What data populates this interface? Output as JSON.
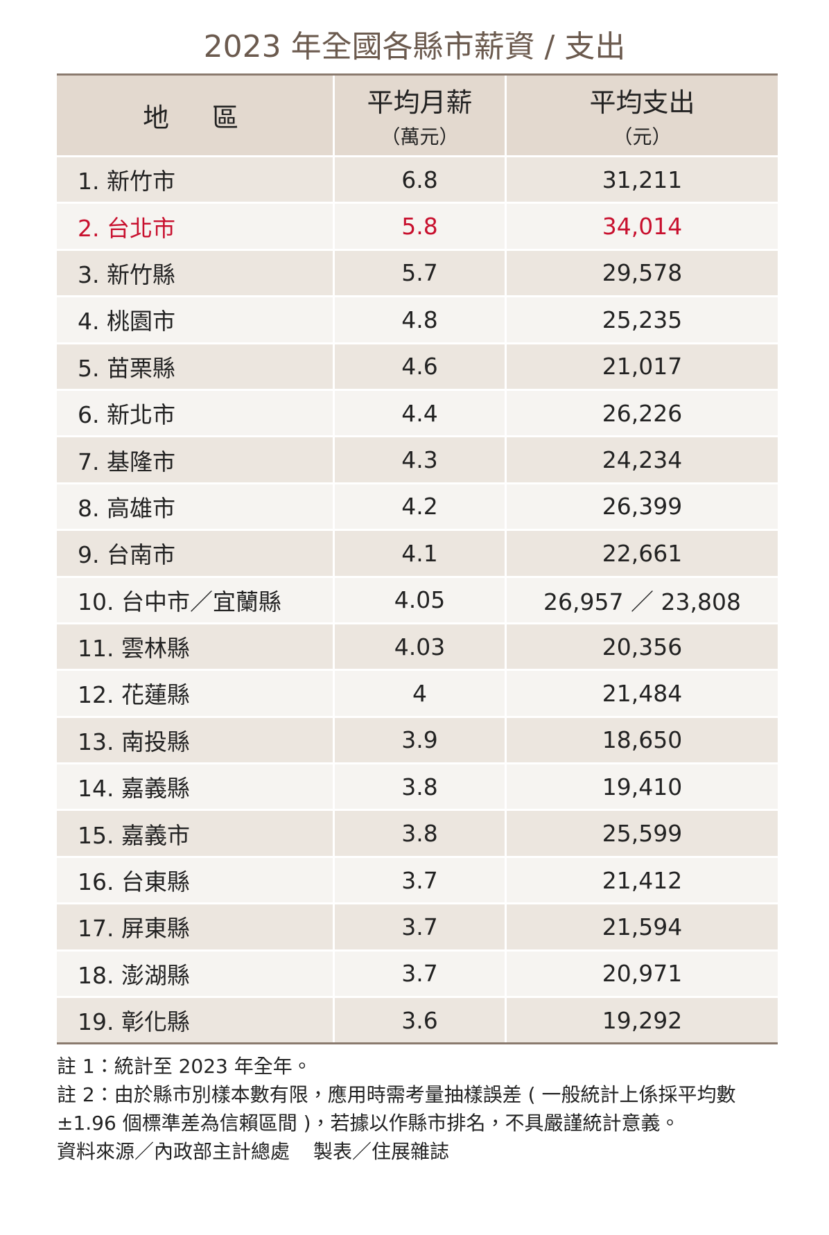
{
  "title": "2023 年全國各縣市薪資 / 支出",
  "table": {
    "header": [
      {
        "label": "地　區"
      },
      {
        "label": "平均月薪",
        "unit": "（萬元）"
      },
      {
        "label": "平均支出",
        "unit": "（元）"
      }
    ],
    "highlight_row": 1,
    "highlight_color": "#c8102e",
    "rows": [
      [
        "1. 新竹市",
        "6.8",
        "31,211"
      ],
      [
        "2. 台北市",
        "5.8",
        "34,014"
      ],
      [
        "3. 新竹縣",
        "5.7",
        "29,578"
      ],
      [
        "4. 桃園市",
        "4.8",
        "25,235"
      ],
      [
        "5. 苗栗縣",
        "4.6",
        "21,017"
      ],
      [
        "6. 新北市",
        "4.4",
        "26,226"
      ],
      [
        "7. 基隆市",
        "4.3",
        "24,234"
      ],
      [
        "8. 高雄市",
        "4.2",
        "26,399"
      ],
      [
        "9. 台南市",
        "4.1",
        "22,661"
      ],
      [
        "10. 台中市／宜蘭縣",
        "4.05",
        "26,957 ／ 23,808"
      ],
      [
        "11. 雲林縣",
        "4.03",
        "20,356"
      ],
      [
        "12. 花蓮縣",
        "4",
        "21,484"
      ],
      [
        "13. 南投縣",
        "3.9",
        "18,650"
      ],
      [
        "14. 嘉義縣",
        "3.8",
        "19,410"
      ],
      [
        "15. 嘉義市",
        "3.8",
        "25,599"
      ],
      [
        "16. 台東縣",
        "3.7",
        "21,412"
      ],
      [
        "17. 屏東縣",
        "3.7",
        "21,594"
      ],
      [
        "18. 澎湖縣",
        "3.7",
        "20,971"
      ],
      [
        "19. 彰化縣",
        "3.6",
        "19,292"
      ]
    ]
  },
  "notes": [
    "註 1：統計至 2023 年全年。",
    "註 2：由於縣市別樣本數有限，應用時需考量抽樣誤差 ( 一般統計上係採平均數 ±1.96 個標準差為信賴區間 )，若據以作縣市排名，不具嚴謹統計意義。"
  ],
  "source": "資料來源／內政部主計總處",
  "credit": "製表／住展雜誌"
}
